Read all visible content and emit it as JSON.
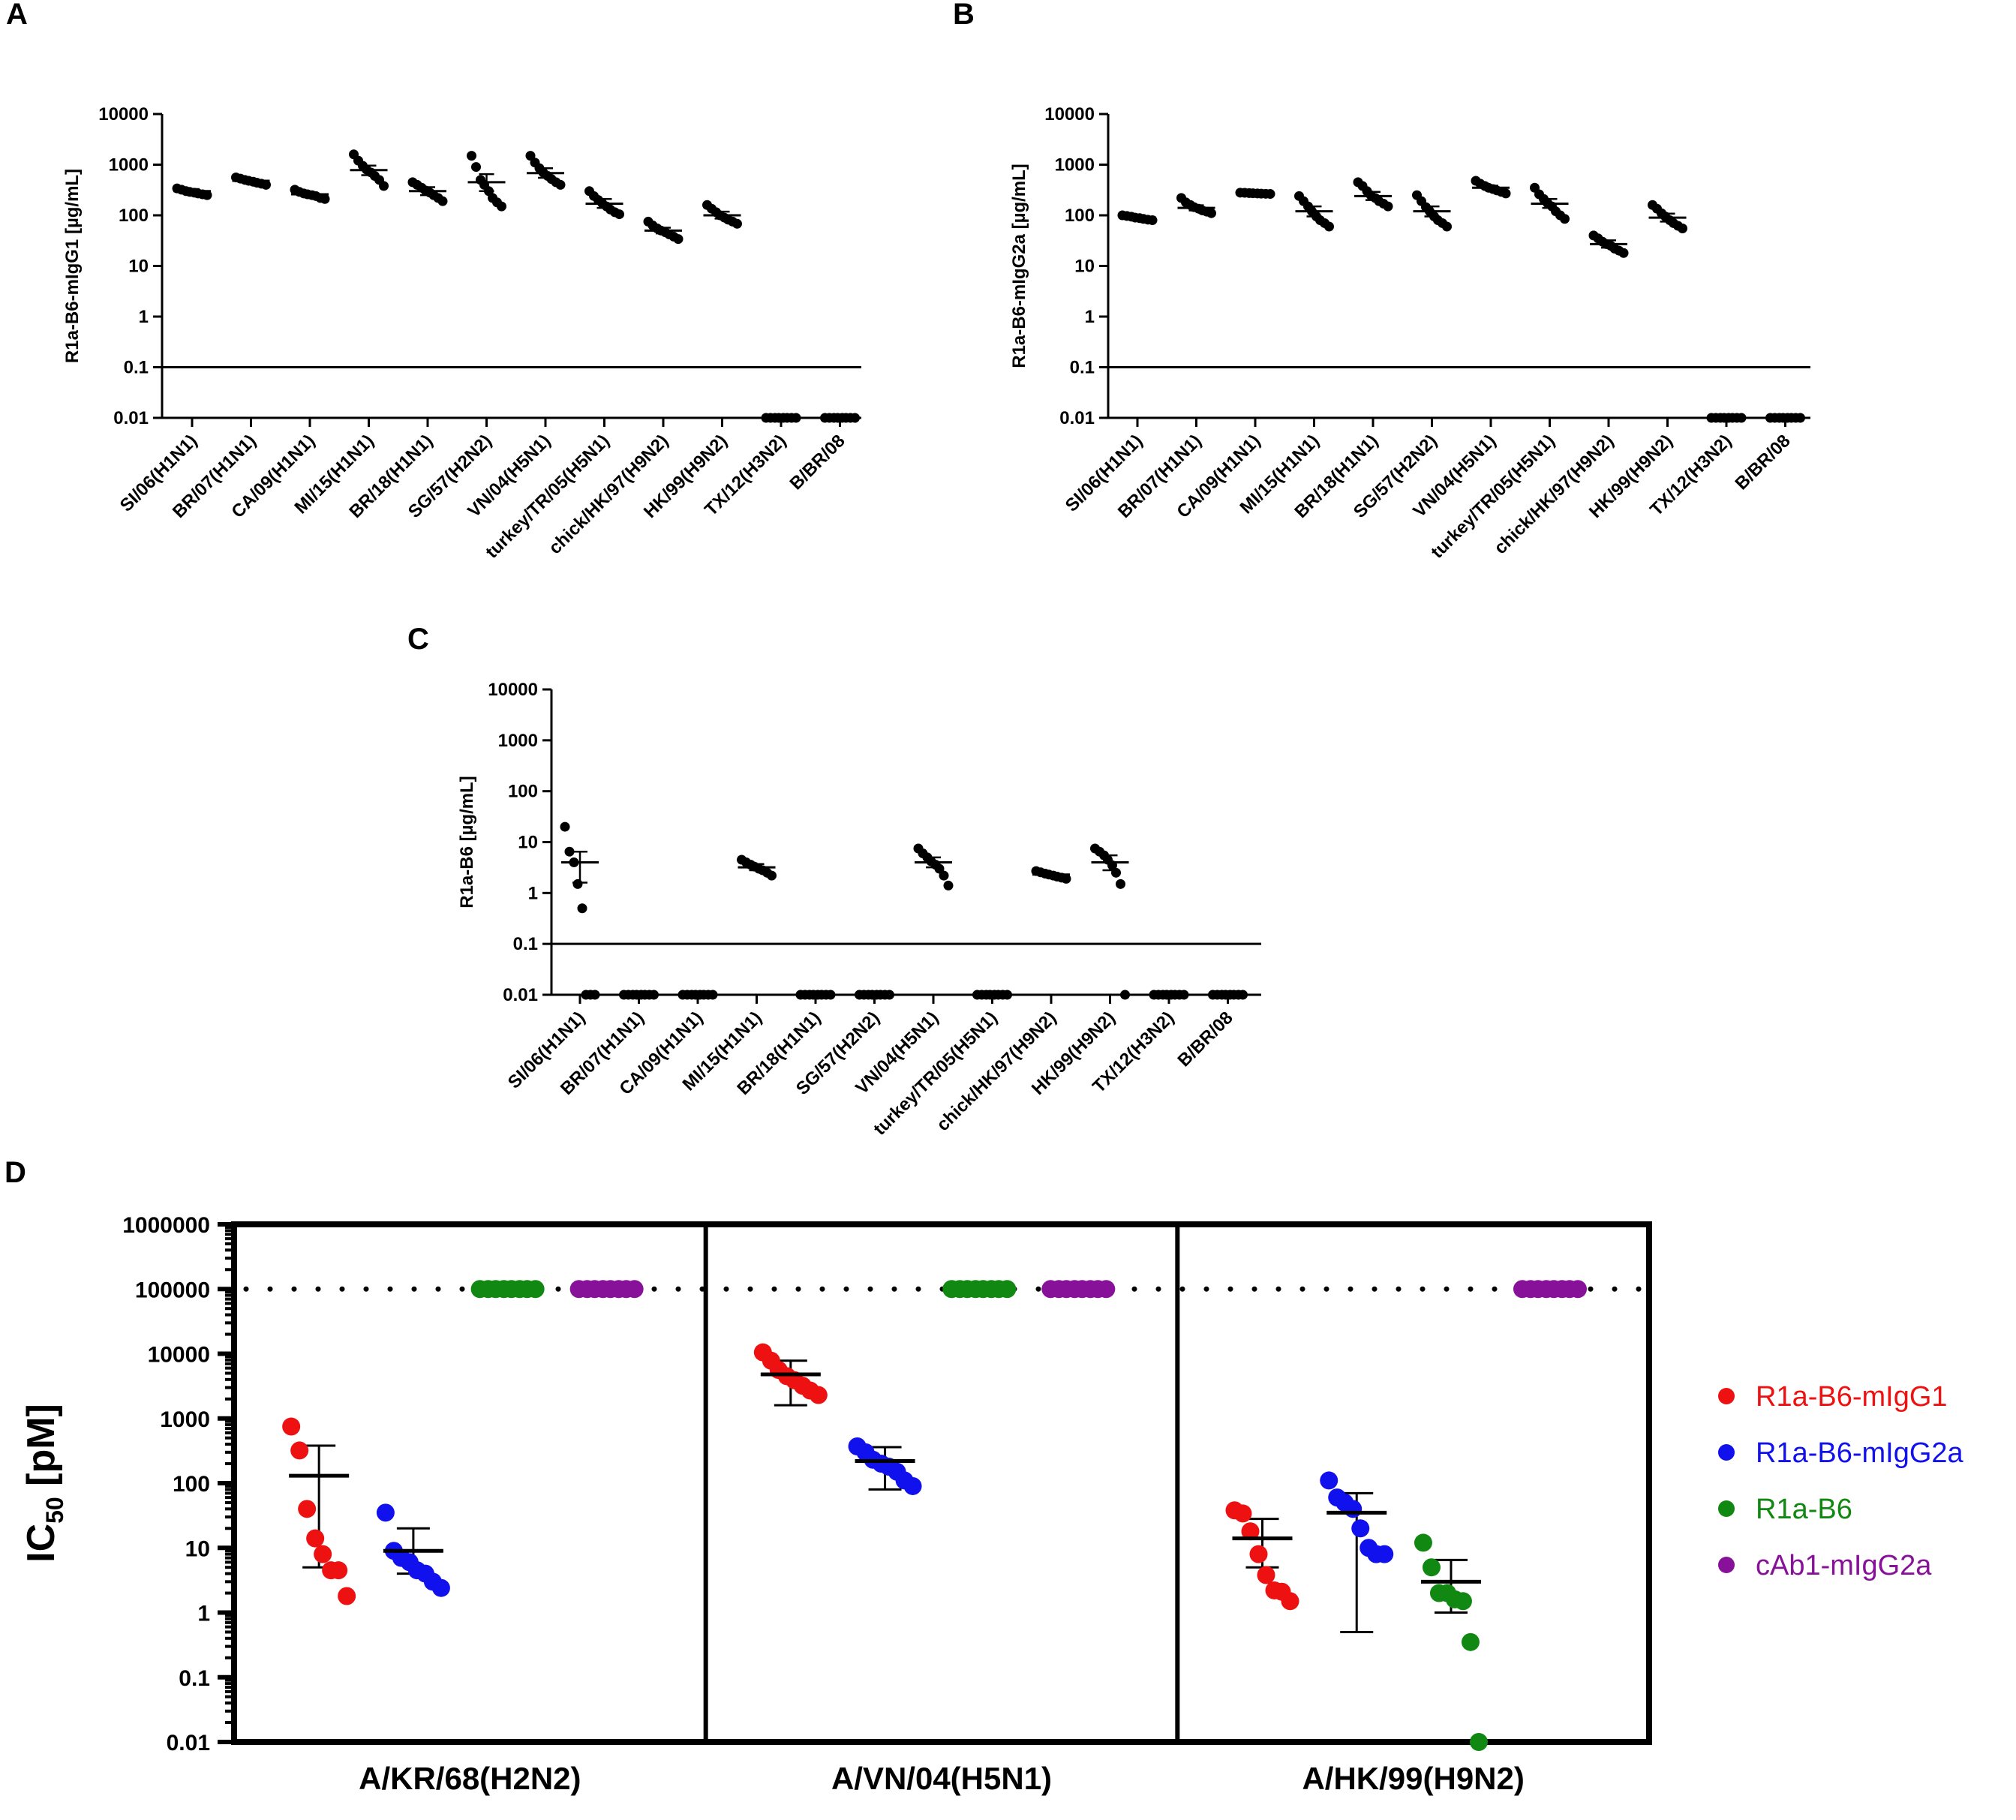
{
  "chart_data": [
    {
      "panel": "A",
      "type": "scatter",
      "ylabel": "R1a-B6-mIgG1  [µg/mL]",
      "yscale": "log",
      "ylim": [
        0.01,
        10000
      ],
      "yticks": [
        "10000",
        "1000",
        "100",
        "10",
        "1",
        "0.1",
        "0.01"
      ],
      "threshold": 0.1,
      "categories": [
        "SI/06(H1N1)",
        "BR/07(H1N1)",
        "CA/09(H1N1)",
        "MI/15(H1N1)",
        "BR/18(H1N1)",
        "SG/57(H2N2)",
        "VN/04(H5N1)",
        "turkey/TR/05(H5N1)",
        "chick/HK/97(H9N2)",
        "HK/99(H9N2)",
        "TX/12(H3N2)",
        "B/BR/08"
      ],
      "series": [
        {
          "mean": 300,
          "sem": [
            270,
            330
          ],
          "points": [
            340,
            320,
            300,
            290,
            280,
            270,
            260,
            250
          ]
        },
        {
          "mean": 480,
          "sem": [
            440,
            520
          ],
          "points": [
            560,
            530,
            500,
            480,
            460,
            440,
            420,
            400
          ]
        },
        {
          "mean": 260,
          "sem": [
            240,
            280
          ],
          "points": [
            320,
            290,
            270,
            260,
            250,
            240,
            220,
            210
          ]
        },
        {
          "mean": 780,
          "sem": [
            620,
            960
          ],
          "points": [
            1600,
            1200,
            950,
            800,
            700,
            600,
            500,
            380
          ]
        },
        {
          "mean": 300,
          "sem": [
            250,
            360
          ],
          "points": [
            450,
            400,
            350,
            310,
            280,
            250,
            220,
            190
          ]
        },
        {
          "mean": 450,
          "sem": [
            300,
            650
          ],
          "points": [
            1500,
            900,
            500,
            400,
            300,
            220,
            180,
            150
          ]
        },
        {
          "mean": 680,
          "sem": [
            550,
            850
          ],
          "points": [
            1500,
            1100,
            850,
            700,
            600,
            520,
            450,
            400
          ]
        },
        {
          "mean": 170,
          "sem": [
            140,
            210
          ],
          "points": [
            300,
            240,
            200,
            175,
            150,
            130,
            115,
            105
          ]
        },
        {
          "mean": 50,
          "sem": [
            44,
            57
          ],
          "points": [
            75,
            63,
            55,
            50,
            46,
            42,
            38,
            34
          ]
        },
        {
          "mean": 100,
          "sem": [
            86,
            118
          ],
          "points": [
            160,
            135,
            115,
            100,
            90,
            82,
            75,
            68
          ]
        },
        {
          "mean": 0.01,
          "sem": [
            0.01,
            0.01
          ],
          "points": [
            0.01,
            0.01,
            0.01,
            0.01,
            0.01,
            0.01,
            0.01,
            0.01
          ]
        },
        {
          "mean": 0.01,
          "sem": [
            0.01,
            0.01
          ],
          "points": [
            0.01,
            0.01,
            0.01,
            0.01,
            0.01,
            0.01,
            0.01,
            0.01
          ]
        }
      ]
    },
    {
      "panel": "B",
      "type": "scatter",
      "ylabel": "R1a-B6-mIgG2a  [µg/mL]",
      "yscale": "log",
      "ylim": [
        0.01,
        10000
      ],
      "yticks": [
        "10000",
        "1000",
        "100",
        "10",
        "1",
        "0.1",
        "0.01"
      ],
      "threshold": 0.1,
      "categories": [
        "SI/06(H1N1)",
        "BR/07(H1N1)",
        "CA/09(H1N1)",
        "MI/15(H1N1)",
        "BR/18(H1N1)",
        "SG/57(H2N2)",
        "VN/04(H5N1)",
        "turkey/TR/05(H5N1)",
        "chick/HK/97(H9N2)",
        "HK/99(H9N2)",
        "TX/12(H3N2)",
        "B/BR/08"
      ],
      "series": [
        {
          "mean": 90,
          "sem": [
            85,
            96
          ],
          "points": [
            100,
            97,
            94,
            90,
            88,
            85,
            82,
            80
          ]
        },
        {
          "mean": 140,
          "sem": [
            125,
            158
          ],
          "points": [
            220,
            180,
            160,
            145,
            135,
            125,
            118,
            110
          ]
        },
        {
          "mean": 270,
          "sem": [
            265,
            275
          ],
          "points": [
            280,
            278,
            275,
            272,
            270,
            268,
            266,
            264
          ]
        },
        {
          "mean": 120,
          "sem": [
            95,
            150
          ],
          "points": [
            240,
            190,
            150,
            120,
            95,
            80,
            70,
            60
          ]
        },
        {
          "mean": 240,
          "sem": [
            200,
            290
          ],
          "points": [
            450,
            380,
            300,
            250,
            220,
            190,
            170,
            150
          ]
        },
        {
          "mean": 120,
          "sem": [
            95,
            150
          ],
          "points": [
            250,
            190,
            145,
            120,
            95,
            80,
            70,
            60
          ]
        },
        {
          "mean": 350,
          "sem": [
            320,
            385
          ],
          "points": [
            480,
            420,
            380,
            350,
            330,
            310,
            290,
            270
          ]
        },
        {
          "mean": 170,
          "sem": [
            140,
            210
          ],
          "points": [
            350,
            260,
            210,
            175,
            150,
            120,
            100,
            85
          ]
        },
        {
          "mean": 27,
          "sem": [
            23,
            32
          ],
          "points": [
            40,
            35,
            30,
            27,
            25,
            22,
            20,
            18
          ]
        },
        {
          "mean": 90,
          "sem": [
            75,
            108
          ],
          "points": [
            160,
            135,
            110,
            95,
            80,
            70,
            62,
            55
          ]
        },
        {
          "mean": 0.01,
          "sem": [
            0.01,
            0.01
          ],
          "points": [
            0.01,
            0.01,
            0.01,
            0.01,
            0.01,
            0.01,
            0.01,
            0.01
          ]
        },
        {
          "mean": 0.01,
          "sem": [
            0.01,
            0.01
          ],
          "points": [
            0.01,
            0.01,
            0.01,
            0.01,
            0.01,
            0.01,
            0.01,
            0.01
          ]
        }
      ]
    },
    {
      "panel": "C",
      "type": "scatter",
      "ylabel": "R1a-B6 [µg/mL]",
      "yscale": "log",
      "ylim": [
        0.01,
        10000
      ],
      "yticks": [
        "10000",
        "1000",
        "100",
        "10",
        "1",
        "0.1",
        "0.01"
      ],
      "threshold": 0.1,
      "categories": [
        "SI/06(H1N1)",
        "BR/07(H1N1)",
        "CA/09(H1N1)",
        "MI/15(H1N1)",
        "BR/18(H1N1)",
        "SG/57(H2N2)",
        "VN/04(H5N1)",
        "turkey/TR/05(H5N1)",
        "chick/HK/97(H9N2)",
        "HK/99(H9N2)",
        "TX/12(H3N2)",
        "B/BR/08"
      ],
      "series": [
        {
          "mean": 4,
          "sem": [
            1.6,
            6.5
          ],
          "points": [
            20,
            6.5,
            4,
            1.5,
            0.5,
            0.01,
            0.01,
            0.01
          ]
        },
        {
          "mean": 0.01,
          "sem": [
            0.01,
            0.01
          ],
          "points": [
            0.01,
            0.01,
            0.01,
            0.01,
            0.01,
            0.01,
            0.01,
            0.01
          ]
        },
        {
          "mean": 0.01,
          "sem": [
            0.01,
            0.01
          ],
          "points": [
            0.01,
            0.01,
            0.01,
            0.01,
            0.01,
            0.01,
            0.01,
            0.01
          ]
        },
        {
          "mean": 3.2,
          "sem": [
            2.8,
            3.7
          ],
          "points": [
            4.5,
            4,
            3.6,
            3.3,
            3,
            2.8,
            2.5,
            2.2
          ]
        },
        {
          "mean": 0.01,
          "sem": [
            0.01,
            0.01
          ],
          "points": [
            0.01,
            0.01,
            0.01,
            0.01,
            0.01,
            0.01,
            0.01,
            0.01
          ]
        },
        {
          "mean": 0.01,
          "sem": [
            0.01,
            0.01
          ],
          "points": [
            0.01,
            0.01,
            0.01,
            0.01,
            0.01,
            0.01,
            0.01,
            0.01
          ]
        },
        {
          "mean": 4,
          "sem": [
            3.2,
            5
          ],
          "points": [
            7.5,
            6,
            5,
            4.2,
            3.6,
            3,
            2.2,
            1.4
          ]
        },
        {
          "mean": 0.01,
          "sem": [
            0.01,
            0.01
          ],
          "points": [
            0.01,
            0.01,
            0.01,
            0.01,
            0.01,
            0.01,
            0.01,
            0.01
          ]
        },
        {
          "mean": 2.3,
          "sem": [
            2.15,
            2.45
          ],
          "points": [
            2.7,
            2.55,
            2.4,
            2.3,
            2.2,
            2.1,
            2,
            1.9
          ]
        },
        {
          "mean": 4,
          "sem": [
            2.8,
            5.5
          ],
          "points": [
            7.5,
            6.5,
            5.5,
            4.5,
            3.5,
            2.5,
            1.5,
            0.01
          ]
        },
        {
          "mean": 0.01,
          "sem": [
            0.01,
            0.01
          ],
          "points": [
            0.01,
            0.01,
            0.01,
            0.01,
            0.01,
            0.01,
            0.01,
            0.01
          ]
        },
        {
          "mean": 0.01,
          "sem": [
            0.01,
            0.01
          ],
          "points": [
            0.01,
            0.01,
            0.01,
            0.01,
            0.01,
            0.01,
            0.01,
            0.01
          ]
        }
      ]
    },
    {
      "panel": "D",
      "type": "scatter",
      "ylabel": "IC",
      "ylabel_sub": "50",
      "ylabel_unit": " [pM]",
      "yscale": "log",
      "ylim": [
        0.01,
        1000000
      ],
      "yticks": [
        "1000000",
        "100000",
        "10000",
        "1000",
        "100",
        "10",
        "1",
        "0.1",
        "0.01"
      ],
      "threshold": 100000,
      "categories": [
        "A/KR/68(H2N2)",
        "A/VN/04(H5N1)",
        "A/HK/99(H9N2)"
      ],
      "series": [
        {
          "name": "R1a-B6-mIgG1",
          "color": "#ee1111",
          "groups": [
            {
              "mean": 130,
              "err": [
                5,
                380
              ],
              "points": [
                750,
                320,
                40,
                14,
                8,
                4.5,
                4.5,
                1.8
              ]
            },
            {
              "mean": 4800,
              "err": [
                1600,
                7800
              ],
              "points": [
                10500,
                7800,
                5600,
                4500,
                3900,
                3200,
                2700,
                2300
              ]
            },
            {
              "mean": 14,
              "err": [
                5,
                28
              ],
              "points": [
                38,
                34,
                18,
                8,
                3.8,
                2.2,
                2.1,
                1.5
              ]
            }
          ]
        },
        {
          "name": "R1a-B6-mIgG2a",
          "color": "#1111ee",
          "groups": [
            {
              "mean": 9,
              "err": [
                4,
                20
              ],
              "points": [
                35,
                9,
                7,
                6,
                4.5,
                4,
                3,
                2.4
              ]
            },
            {
              "mean": 220,
              "err": [
                80,
                360
              ],
              "points": [
                370,
                300,
                230,
                200,
                180,
                150,
                110,
                90
              ]
            },
            {
              "mean": 35,
              "err": [
                0.5,
                70
              ],
              "points": [
                110,
                60,
                50,
                40,
                20,
                10,
                8,
                8
              ]
            }
          ]
        },
        {
          "name": "R1a-B6",
          "color": "#118811",
          "groups": [
            {
              "mean": 100000,
              "err": [
                100000,
                100000
              ],
              "points": [
                100000,
                100000,
                100000,
                100000,
                100000,
                100000,
                100000,
                100000
              ]
            },
            {
              "mean": 100000,
              "err": [
                100000,
                100000
              ],
              "points": [
                100000,
                100000,
                100000,
                100000,
                100000,
                100000,
                100000,
                100000
              ]
            },
            {
              "mean": 3,
              "err": [
                1,
                6.5
              ],
              "points": [
                12,
                5,
                2,
                2,
                1.6,
                1.5,
                0.35,
                0.01
              ]
            }
          ]
        },
        {
          "name": "cAb1-mIgG2a",
          "color": "#881199",
          "groups": [
            {
              "mean": 100000,
              "err": [
                100000,
                100000
              ],
              "points": [
                100000,
                100000,
                100000,
                100000,
                100000,
                100000,
                100000,
                100000
              ]
            },
            {
              "mean": 100000,
              "err": [
                100000,
                100000
              ],
              "points": [
                100000,
                100000,
                100000,
                100000,
                100000,
                100000,
                100000,
                100000
              ]
            },
            {
              "mean": 100000,
              "err": [
                100000,
                100000
              ],
              "points": [
                100000,
                100000,
                100000,
                100000,
                100000,
                100000,
                100000,
                100000
              ]
            }
          ]
        }
      ]
    }
  ]
}
